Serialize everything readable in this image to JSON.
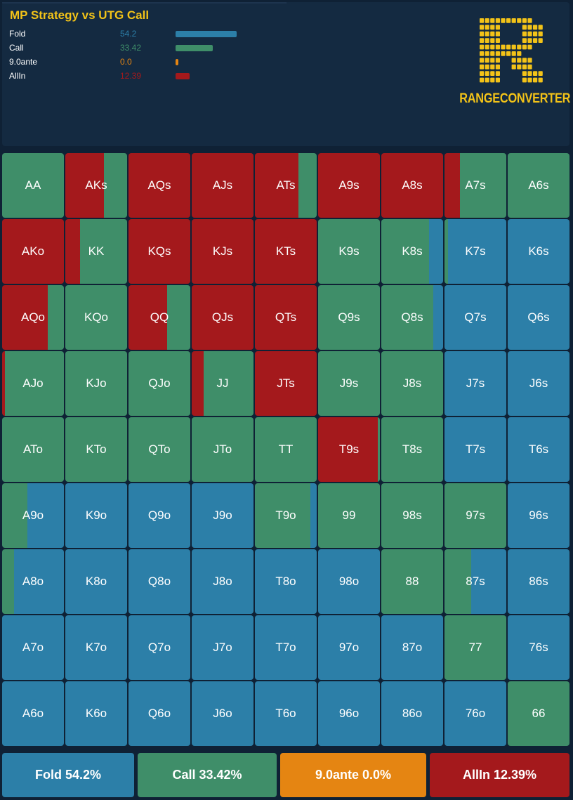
{
  "title": "MP Strategy vs UTG Call",
  "colors": {
    "fold": "#2c7fa8",
    "call": "#3f8e69",
    "ante": "#e58512",
    "allin": "#a4191c",
    "title": "#f3c318"
  },
  "summary": [
    {
      "label": "Fold",
      "value": "54.2",
      "pct": 54.2,
      "color": "#2c7fa8"
    },
    {
      "label": "Call",
      "value": "33.42",
      "pct": 33.42,
      "color": "#3f8e69"
    },
    {
      "label": "9.0ante",
      "value": "0.0",
      "pct": 0.0,
      "color": "#e58512"
    },
    {
      "label": "AllIn",
      "value": "12.39",
      "pct": 12.39,
      "color": "#a4191c"
    }
  ],
  "logo": {
    "text": "RANGECONVERTER"
  },
  "grid": [
    [
      {
        "hand": "AA",
        "a": 0,
        "c": 100,
        "f": 0
      },
      {
        "hand": "AKs",
        "a": 62,
        "c": 38,
        "f": 0
      },
      {
        "hand": "AQs",
        "a": 100,
        "c": 0,
        "f": 0
      },
      {
        "hand": "AJs",
        "a": 100,
        "c": 0,
        "f": 0
      },
      {
        "hand": "ATs",
        "a": 71,
        "c": 29,
        "f": 0
      },
      {
        "hand": "A9s",
        "a": 100,
        "c": 0,
        "f": 0
      },
      {
        "hand": "A8s",
        "a": 100,
        "c": 0,
        "f": 0
      },
      {
        "hand": "A7s",
        "a": 25,
        "c": 75,
        "f": 0
      },
      {
        "hand": "A6s",
        "a": 0,
        "c": 100,
        "f": 0
      }
    ],
    [
      {
        "hand": "AKo",
        "a": 100,
        "c": 0,
        "f": 0
      },
      {
        "hand": "KK",
        "a": 24,
        "c": 76,
        "f": 0
      },
      {
        "hand": "KQs",
        "a": 100,
        "c": 0,
        "f": 0
      },
      {
        "hand": "KJs",
        "a": 100,
        "c": 0,
        "f": 0
      },
      {
        "hand": "KTs",
        "a": 100,
        "c": 0,
        "f": 0
      },
      {
        "hand": "K9s",
        "a": 0,
        "c": 100,
        "f": 0
      },
      {
        "hand": "K8s",
        "a": 0,
        "c": 77,
        "f": 23
      },
      {
        "hand": "K7s",
        "a": 0,
        "c": 6,
        "f": 94
      },
      {
        "hand": "K6s",
        "a": 0,
        "c": 0,
        "f": 100
      }
    ],
    [
      {
        "hand": "AQo",
        "a": 74,
        "c": 26,
        "f": 0
      },
      {
        "hand": "KQo",
        "a": 0,
        "c": 100,
        "f": 0
      },
      {
        "hand": "QQ",
        "a": 63,
        "c": 37,
        "f": 0
      },
      {
        "hand": "QJs",
        "a": 100,
        "c": 0,
        "f": 0
      },
      {
        "hand": "QTs",
        "a": 100,
        "c": 0,
        "f": 0
      },
      {
        "hand": "Q9s",
        "a": 0,
        "c": 100,
        "f": 0
      },
      {
        "hand": "Q8s",
        "a": 0,
        "c": 84,
        "f": 16
      },
      {
        "hand": "Q7s",
        "a": 0,
        "c": 0,
        "f": 100
      },
      {
        "hand": "Q6s",
        "a": 0,
        "c": 0,
        "f": 100
      }
    ],
    [
      {
        "hand": "AJo",
        "a": 5,
        "c": 95,
        "f": 0
      },
      {
        "hand": "KJo",
        "a": 0,
        "c": 100,
        "f": 0
      },
      {
        "hand": "QJo",
        "a": 0,
        "c": 100,
        "f": 0
      },
      {
        "hand": "JJ",
        "a": 19,
        "c": 81,
        "f": 0
      },
      {
        "hand": "JTs",
        "a": 100,
        "c": 0,
        "f": 0
      },
      {
        "hand": "J9s",
        "a": 0,
        "c": 100,
        "f": 0
      },
      {
        "hand": "J8s",
        "a": 0,
        "c": 100,
        "f": 0
      },
      {
        "hand": "J7s",
        "a": 0,
        "c": 0,
        "f": 100
      },
      {
        "hand": "J6s",
        "a": 0,
        "c": 0,
        "f": 100
      }
    ],
    [
      {
        "hand": "ATo",
        "a": 0,
        "c": 100,
        "f": 0
      },
      {
        "hand": "KTo",
        "a": 0,
        "c": 100,
        "f": 0
      },
      {
        "hand": "QTo",
        "a": 0,
        "c": 100,
        "f": 0
      },
      {
        "hand": "JTo",
        "a": 0,
        "c": 100,
        "f": 0
      },
      {
        "hand": "TT",
        "a": 0,
        "c": 100,
        "f": 0
      },
      {
        "hand": "T9s",
        "a": 97,
        "c": 3,
        "f": 0
      },
      {
        "hand": "T8s",
        "a": 0,
        "c": 100,
        "f": 0
      },
      {
        "hand": "T7s",
        "a": 0,
        "c": 0,
        "f": 100
      },
      {
        "hand": "T6s",
        "a": 0,
        "c": 0,
        "f": 100
      }
    ],
    [
      {
        "hand": "A9o",
        "a": 0,
        "c": 41,
        "f": 59
      },
      {
        "hand": "K9o",
        "a": 0,
        "c": 0,
        "f": 100
      },
      {
        "hand": "Q9o",
        "a": 0,
        "c": 0,
        "f": 100
      },
      {
        "hand": "J9o",
        "a": 0,
        "c": 0,
        "f": 100
      },
      {
        "hand": "T9o",
        "a": 0,
        "c": 90,
        "f": 10
      },
      {
        "hand": "99",
        "a": 0,
        "c": 100,
        "f": 0
      },
      {
        "hand": "98s",
        "a": 0,
        "c": 100,
        "f": 0
      },
      {
        "hand": "97s",
        "a": 0,
        "c": 100,
        "f": 0
      },
      {
        "hand": "96s",
        "a": 0,
        "c": 0,
        "f": 100
      }
    ],
    [
      {
        "hand": "A8o",
        "a": 0,
        "c": 19,
        "f": 81
      },
      {
        "hand": "K8o",
        "a": 0,
        "c": 0,
        "f": 100
      },
      {
        "hand": "Q8o",
        "a": 0,
        "c": 0,
        "f": 100
      },
      {
        "hand": "J8o",
        "a": 0,
        "c": 0,
        "f": 100
      },
      {
        "hand": "T8o",
        "a": 0,
        "c": 0,
        "f": 100
      },
      {
        "hand": "98o",
        "a": 0,
        "c": 0,
        "f": 100
      },
      {
        "hand": "88",
        "a": 0,
        "c": 100,
        "f": 0
      },
      {
        "hand": "87s",
        "a": 0,
        "c": 43,
        "f": 57
      },
      {
        "hand": "86s",
        "a": 0,
        "c": 0,
        "f": 100
      }
    ],
    [
      {
        "hand": "A7o",
        "a": 0,
        "c": 0,
        "f": 100
      },
      {
        "hand": "K7o",
        "a": 0,
        "c": 0,
        "f": 100
      },
      {
        "hand": "Q7o",
        "a": 0,
        "c": 0,
        "f": 100
      },
      {
        "hand": "J7o",
        "a": 0,
        "c": 0,
        "f": 100
      },
      {
        "hand": "T7o",
        "a": 0,
        "c": 0,
        "f": 100
      },
      {
        "hand": "97o",
        "a": 0,
        "c": 0,
        "f": 100
      },
      {
        "hand": "87o",
        "a": 0,
        "c": 0,
        "f": 100
      },
      {
        "hand": "77",
        "a": 0,
        "c": 100,
        "f": 0
      },
      {
        "hand": "76s",
        "a": 0,
        "c": 0,
        "f": 100
      }
    ],
    [
      {
        "hand": "A6o",
        "a": 0,
        "c": 0,
        "f": 100
      },
      {
        "hand": "K6o",
        "a": 0,
        "c": 0,
        "f": 100
      },
      {
        "hand": "Q6o",
        "a": 0,
        "c": 0,
        "f": 100
      },
      {
        "hand": "J6o",
        "a": 0,
        "c": 0,
        "f": 100
      },
      {
        "hand": "T6o",
        "a": 0,
        "c": 0,
        "f": 100
      },
      {
        "hand": "96o",
        "a": 0,
        "c": 0,
        "f": 100
      },
      {
        "hand": "86o",
        "a": 0,
        "c": 0,
        "f": 100
      },
      {
        "hand": "76o",
        "a": 0,
        "c": 0,
        "f": 100
      },
      {
        "hand": "66",
        "a": 0,
        "c": 100,
        "f": 0
      }
    ]
  ],
  "totals": [
    {
      "label": "Fold 54.2%",
      "color": "#2c7fa8"
    },
    {
      "label": "Call 33.42%",
      "color": "#3f8e69"
    },
    {
      "label": "9.0ante 0.0%",
      "color": "#e58512"
    },
    {
      "label": "AllIn 12.39%",
      "color": "#a4191c"
    }
  ]
}
